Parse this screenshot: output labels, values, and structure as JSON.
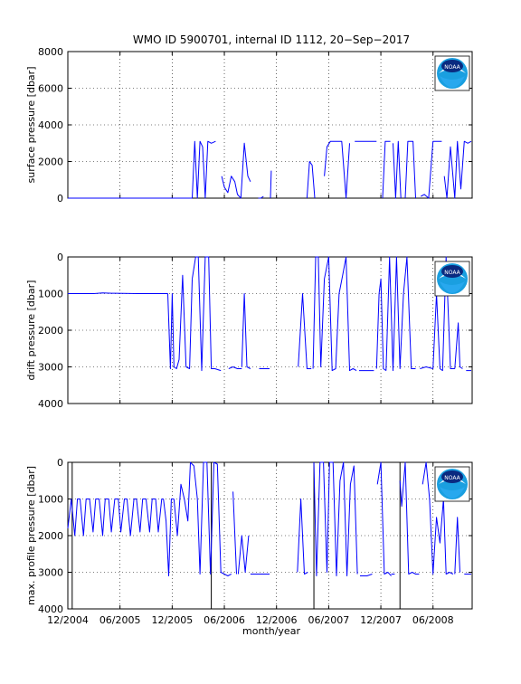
{
  "figure": {
    "title": "WMO ID 5900701, internal ID 1112, 20−Sep−2017",
    "xlabel": "month/year",
    "x_tick_labels": [
      "12/2004",
      "06/2005",
      "12/2005",
      "06/2006",
      "12/2006",
      "06/2007",
      "12/2007",
      "06/2008"
    ],
    "logo": "noaa-logo",
    "logo_text": "NOAA",
    "line_color": "#0000ff"
  },
  "chart_data": [
    {
      "type": "line",
      "ylabel": "surface pressure [dbar]",
      "ylim": [
        0,
        8000
      ],
      "y_inverted": false,
      "y_tick_labels": [
        "0",
        "2000",
        "4000",
        "6000",
        "8000"
      ],
      "xlim": [
        0,
        46.5
      ],
      "x_unit": "months since 12/2004",
      "grid": true,
      "series": [
        {
          "x": [
            0,
            14.3
          ],
          "values": [
            0,
            0
          ]
        },
        {
          "x": [
            14.3,
            14.6,
            14.9,
            15.2,
            15.5,
            15.8,
            16.1,
            16.5,
            17.0
          ],
          "values": [
            0,
            3100,
            0,
            3100,
            2800,
            0,
            3100,
            3000,
            3100
          ]
        },
        {
          "x": [
            17.7,
            18.0,
            18.4,
            18.8,
            19.2,
            19.5,
            19.9,
            20.3,
            20.7,
            21.0
          ],
          "values": [
            1200,
            600,
            300,
            1200,
            900,
            200,
            0,
            3000,
            1200,
            900
          ]
        },
        {
          "x": [
            21.9,
            22.2,
            22.5
          ],
          "values": [
            0,
            0,
            100
          ]
        },
        {
          "x": [
            23.3,
            23.4
          ],
          "values": [
            0,
            1500
          ]
        },
        {
          "x": [
            27.5,
            27.8,
            28.1,
            28.4
          ],
          "values": [
            0,
            2000,
            1800,
            0
          ]
        },
        {
          "x": [
            29.5,
            29.8,
            30.2,
            30.6,
            31.0,
            31.5,
            32.0,
            32.4
          ],
          "values": [
            1200,
            2800,
            3100,
            3100,
            3100,
            3100,
            0,
            3000
          ]
        },
        {
          "x": [
            33.0,
            35.5
          ],
          "values": [
            3100,
            3100
          ]
        },
        {
          "x": [
            36.2,
            36.5,
            36.8,
            37.1
          ],
          "values": [
            0,
            3100,
            3100,
            3100
          ]
        },
        {
          "x": [
            37.4,
            37.7,
            38.0,
            38.3
          ],
          "values": [
            3000,
            0,
            3100,
            0
          ]
        },
        {
          "x": [
            38.8,
            39.1,
            39.4,
            39.7,
            40.0
          ],
          "values": [
            0,
            3100,
            3100,
            3100,
            0
          ]
        },
        {
          "x": [
            40.6,
            41.0,
            41.5,
            42.0,
            42.6,
            43.0
          ],
          "values": [
            100,
            200,
            0,
            3100,
            3100,
            3100
          ]
        },
        {
          "x": [
            43.3,
            43.6,
            44.0,
            44.5,
            44.8,
            45.2,
            45.6,
            46.0,
            46.4
          ],
          "values": [
            1200,
            0,
            2800,
            0,
            3100,
            500,
            3100,
            3000,
            3100
          ]
        }
      ]
    },
    {
      "type": "line",
      "ylabel": "drift pressure [dbar]",
      "ylim": [
        0,
        4000
      ],
      "y_inverted": true,
      "y_tick_labels": [
        "0",
        "1000",
        "2000",
        "3000",
        "4000"
      ],
      "xlim": [
        0,
        46.5
      ],
      "x_unit": "months since 12/2004",
      "grid": true,
      "series": [
        {
          "x": [
            0,
            3.0,
            4.0,
            5.0,
            8.0,
            11.5
          ],
          "values": [
            1000,
            1000,
            980,
            990,
            1000,
            1000
          ]
        },
        {
          "x": [
            11.5,
            11.8,
            12.0,
            12.2,
            12.5,
            12.8,
            13.2,
            13.6,
            14.0,
            14.3
          ],
          "values": [
            1000,
            3050,
            1000,
            3000,
            3050,
            2800,
            500,
            3000,
            3050,
            600
          ]
        },
        {
          "x": [
            14.3,
            14.7,
            15.0,
            15.4,
            15.8,
            16.2,
            16.5,
            16.9
          ],
          "values": [
            600,
            0,
            0,
            3100,
            0,
            0,
            3050,
            3050
          ]
        },
        {
          "x": [
            16.9,
            17.6
          ],
          "values": [
            3050,
            3100
          ]
        },
        {
          "x": [
            18.5,
            19.0,
            19.5,
            20.0
          ],
          "values": [
            3050,
            3000,
            3050,
            3050
          ]
        },
        {
          "x": [
            20.0,
            20.3,
            20.6,
            21.0
          ],
          "values": [
            3000,
            1000,
            3000,
            3050
          ]
        },
        {
          "x": [
            22.0,
            23.2
          ],
          "values": [
            3050,
            3050
          ]
        },
        {
          "x": [
            26.5,
            27.0,
            27.5,
            28.0
          ],
          "values": [
            3000,
            1000,
            3050,
            3050
          ]
        },
        {
          "x": [
            28.2,
            28.5,
            28.8,
            29.1,
            29.5,
            30.0,
            30.4,
            30.8,
            31.2,
            31.6,
            32.0,
            32.4,
            32.8,
            33.2
          ],
          "values": [
            3050,
            0,
            0,
            3000,
            600,
            0,
            3100,
            3050,
            1000,
            500,
            0,
            3100,
            3050,
            3100
          ]
        },
        {
          "x": [
            33.5,
            35.2
          ],
          "values": [
            3100,
            3100
          ]
        },
        {
          "x": [
            35.5,
            35.8,
            36.0,
            36.3,
            36.6
          ],
          "values": [
            3050,
            1000,
            600,
            3050,
            3100
          ]
        },
        {
          "x": [
            36.6,
            37.0,
            37.4,
            37.8,
            38.2,
            38.6,
            39.0,
            39.5,
            40.0
          ],
          "values": [
            3100,
            0,
            3100,
            0,
            3050,
            1000,
            0,
            3050,
            3050
          ]
        },
        {
          "x": [
            40.5,
            41.2,
            42.0,
            42.4,
            42.8,
            43.1,
            43.5,
            44.0,
            44.5
          ],
          "values": [
            3050,
            3000,
            3050,
            1000,
            3050,
            3100,
            0,
            3050,
            3050
          ]
        },
        {
          "x": [
            44.5,
            44.9,
            45.1,
            45.4
          ],
          "values": [
            3050,
            1800,
            3000,
            3050
          ]
        },
        {
          "x": [
            45.8,
            46.4
          ],
          "values": [
            3100,
            3100
          ]
        }
      ]
    },
    {
      "type": "line",
      "ylabel": "max. profile pressure [dbar]",
      "ylim": [
        0,
        4000
      ],
      "y_inverted": true,
      "y_tick_labels": [
        "0",
        "1000",
        "2000",
        "3000",
        "4000"
      ],
      "xlim": [
        0,
        46.5
      ],
      "x_unit": "months since 12/2004",
      "grid": true,
      "vertical_lines_x": [
        0.5,
        16.5,
        28.3,
        38.2
      ],
      "series": [
        {
          "x": [
            0,
            0.4,
            0.8,
            1.1,
            1.4,
            1.8,
            2.1,
            2.5,
            2.9,
            3.2,
            3.6,
            4.0,
            4.3,
            4.7,
            5.0,
            5.4,
            5.8,
            6.1,
            6.5,
            6.8,
            7.2,
            7.6,
            7.9,
            8.3,
            8.6,
            9.0,
            9.4,
            9.7,
            10.1,
            10.4,
            10.8,
            11.0
          ],
          "values": [
            1800,
            1000,
            2000,
            1000,
            1000,
            2000,
            1000,
            1000,
            1900,
            1000,
            1000,
            2000,
            1000,
            1000,
            1900,
            1000,
            1000,
            1900,
            1000,
            1000,
            2000,
            1000,
            1000,
            1900,
            1000,
            1000,
            1900,
            1000,
            1000,
            1900,
            1000,
            1000
          ]
        },
        {
          "x": [
            11.0,
            11.3,
            11.6,
            11.9,
            12.2
          ],
          "values": [
            1000,
            1600,
            3100,
            1000,
            1000
          ]
        },
        {
          "x": [
            12.2,
            12.6,
            13.0,
            13.4,
            13.8,
            14.1,
            14.5,
            14.9
          ],
          "values": [
            1000,
            2000,
            600,
            1000,
            1600,
            0,
            100,
            1000
          ]
        },
        {
          "x": [
            14.9,
            15.2,
            15.6,
            16.0,
            16.4,
            16.8,
            17.2,
            17.6,
            18.0,
            18.4,
            18.8
          ],
          "values": [
            1000,
            3050,
            0,
            0,
            3050,
            0,
            50,
            3000,
            3050,
            3100,
            3050
          ]
        },
        {
          "x": [
            19.0,
            19.4
          ],
          "values": [
            800,
            3050
          ]
        },
        {
          "x": [
            19.6,
            20.0,
            20.4,
            20.8
          ],
          "values": [
            3050,
            2000,
            3000,
            2000
          ]
        },
        {
          "x": [
            21.0,
            22.0,
            23.2
          ],
          "values": [
            3050,
            3050,
            3050
          ]
        },
        {
          "x": [
            26.4,
            26.8,
            27.2,
            27.6
          ],
          "values": [
            3000,
            1000,
            3050,
            3000
          ]
        },
        {
          "x": [
            28.3,
            28.6,
            29.0,
            29.4,
            29.8,
            30.1,
            30.5,
            30.9,
            31.3,
            31.7,
            32.1,
            32.5,
            32.9,
            33.3
          ],
          "values": [
            0,
            3100,
            0,
            0,
            3000,
            0,
            0,
            3100,
            500,
            0,
            3100,
            600,
            100,
            3050
          ]
        },
        {
          "x": [
            33.6,
            34.4,
            35.0
          ],
          "values": [
            3100,
            3100,
            3050
          ]
        },
        {
          "x": [
            35.6,
            36.0,
            36.4,
            36.8,
            37.2
          ],
          "values": [
            600,
            0,
            3050,
            3000,
            3100
          ]
        },
        {
          "x": [
            37.2,
            37.6
          ],
          "values": [
            3050,
            3050
          ]
        },
        {
          "x": [
            38.2,
            38.4,
            38.8,
            39.2,
            39.6,
            40.0,
            40.4
          ],
          "values": [
            500,
            1200,
            0,
            3050,
            3000,
            3050,
            3050
          ]
        },
        {
          "x": [
            40.8,
            41.2,
            41.6,
            42.0,
            42.4,
            42.8,
            43.2,
            43.5,
            43.9,
            44.3
          ],
          "values": [
            600,
            0,
            1000,
            3050,
            1500,
            2200,
            1000,
            3050,
            3000,
            3050
          ]
        },
        {
          "x": [
            44.5,
            44.8,
            45.1
          ],
          "values": [
            3050,
            1500,
            3000
          ]
        },
        {
          "x": [
            45.6,
            46.4
          ],
          "values": [
            3050,
            3050
          ]
        }
      ]
    }
  ]
}
